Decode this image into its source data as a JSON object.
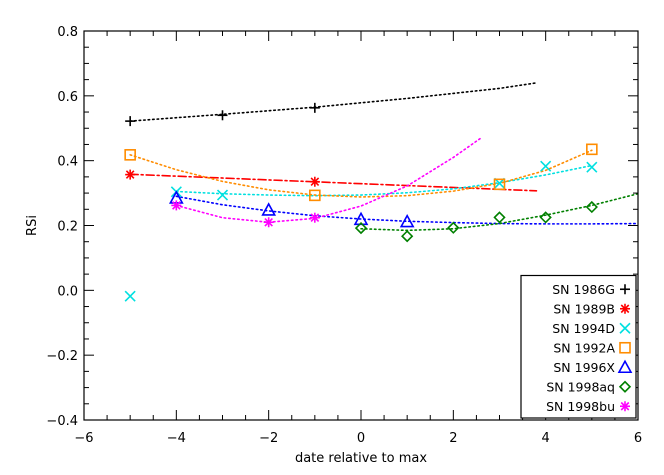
{
  "chart_data": {
    "type": "scatter",
    "xlabel": "date relative to max",
    "ylabel": "RSi",
    "xlim": [
      -6,
      6
    ],
    "ylim": [
      -0.4,
      0.8
    ],
    "x_ticks": [
      -6,
      -4,
      -2,
      0,
      2,
      4,
      6
    ],
    "x_tick_labels": [
      "−6",
      "−4",
      "−2",
      "0",
      "2",
      "4",
      "6"
    ],
    "y_ticks": [
      -0.4,
      -0.2,
      0.0,
      0.2,
      0.4,
      0.6,
      0.8
    ],
    "y_tick_labels": [
      "−0.4",
      "−0.2",
      "0.0",
      "0.2",
      "0.4",
      "0.6",
      "0.8"
    ],
    "grid": false,
    "legend_position": "bottom-right",
    "series": [
      {
        "name": "SN 1986G",
        "color": "#000000",
        "marker": "plus",
        "x": [
          -5,
          -3,
          -1
        ],
        "y": [
          0.522,
          0.54,
          0.563
        ],
        "fit": {
          "style": "dotted",
          "x": [
            -5,
            -3,
            -1,
            1,
            3,
            3.8
          ],
          "y": [
            0.522,
            0.543,
            0.565,
            0.592,
            0.623,
            0.64
          ]
        }
      },
      {
        "name": "SN 1989B",
        "color": "#ff0000",
        "marker": "asterisk",
        "x": [
          -5,
          -1
        ],
        "y": [
          0.357,
          0.335
        ],
        "fit": {
          "style": "dashdot",
          "x": [
            -5,
            3.8
          ],
          "y": [
            0.358,
            0.307
          ]
        }
      },
      {
        "name": "SN 1994D",
        "color": "#00e0e0",
        "marker": "cross",
        "x": [
          -5,
          -4,
          -3,
          3,
          4,
          5
        ],
        "y": [
          -0.018,
          0.304,
          0.294,
          0.33,
          0.383,
          0.38
        ],
        "fit": {
          "style": "dotted",
          "x": [
            -4,
            -3,
            -2,
            -1,
            0,
            1,
            2,
            3,
            4,
            5
          ],
          "y": [
            0.305,
            0.298,
            0.294,
            0.292,
            0.294,
            0.301,
            0.313,
            0.332,
            0.356,
            0.385
          ]
        }
      },
      {
        "name": "SN 1992A",
        "color": "#ff8c00",
        "marker": "square",
        "x": [
          -5,
          -1,
          3,
          5
        ],
        "y": [
          0.418,
          0.293,
          0.327,
          0.435
        ],
        "fit": {
          "style": "dotted",
          "x": [
            -5,
            -4,
            -3,
            -2,
            -1,
            0,
            1,
            2,
            3,
            4,
            5
          ],
          "y": [
            0.418,
            0.372,
            0.336,
            0.31,
            0.294,
            0.288,
            0.292,
            0.306,
            0.33,
            0.37,
            0.432
          ]
        }
      },
      {
        "name": "SN 1996X",
        "color": "#0000ff",
        "marker": "triangle",
        "x": [
          -4,
          -2,
          0,
          1
        ],
        "y": [
          0.285,
          0.248,
          0.219,
          0.212
        ],
        "fit": {
          "style": "dotted",
          "x": [
            -4,
            -3,
            -2,
            -1,
            0,
            1,
            2,
            3,
            4,
            5,
            6
          ],
          "y": [
            0.29,
            0.264,
            0.245,
            0.23,
            0.22,
            0.213,
            0.209,
            0.206,
            0.205,
            0.205,
            0.206
          ]
        }
      },
      {
        "name": "SN 1998aq",
        "color": "#008000",
        "marker": "diamond",
        "x": [
          0,
          1,
          2,
          3,
          4,
          5
        ],
        "y": [
          0.192,
          0.167,
          0.193,
          0.225,
          0.225,
          0.257
        ],
        "fit": {
          "style": "dotted",
          "x": [
            0,
            1,
            2,
            3,
            4,
            5,
            6
          ],
          "y": [
            0.19,
            0.185,
            0.19,
            0.206,
            0.232,
            0.262,
            0.298
          ]
        }
      },
      {
        "name": "SN 1998bu",
        "color": "#ff00ff",
        "marker": "asterisk",
        "x": [
          -4,
          -2,
          -1
        ],
        "y": [
          0.262,
          0.21,
          0.224
        ],
        "fit": {
          "style": "dotted",
          "x": [
            -4,
            -3,
            -2,
            -1,
            0,
            1,
            2,
            2.6
          ],
          "y": [
            0.262,
            0.224,
            0.21,
            0.222,
            0.26,
            0.322,
            0.41,
            0.47
          ]
        }
      }
    ]
  }
}
